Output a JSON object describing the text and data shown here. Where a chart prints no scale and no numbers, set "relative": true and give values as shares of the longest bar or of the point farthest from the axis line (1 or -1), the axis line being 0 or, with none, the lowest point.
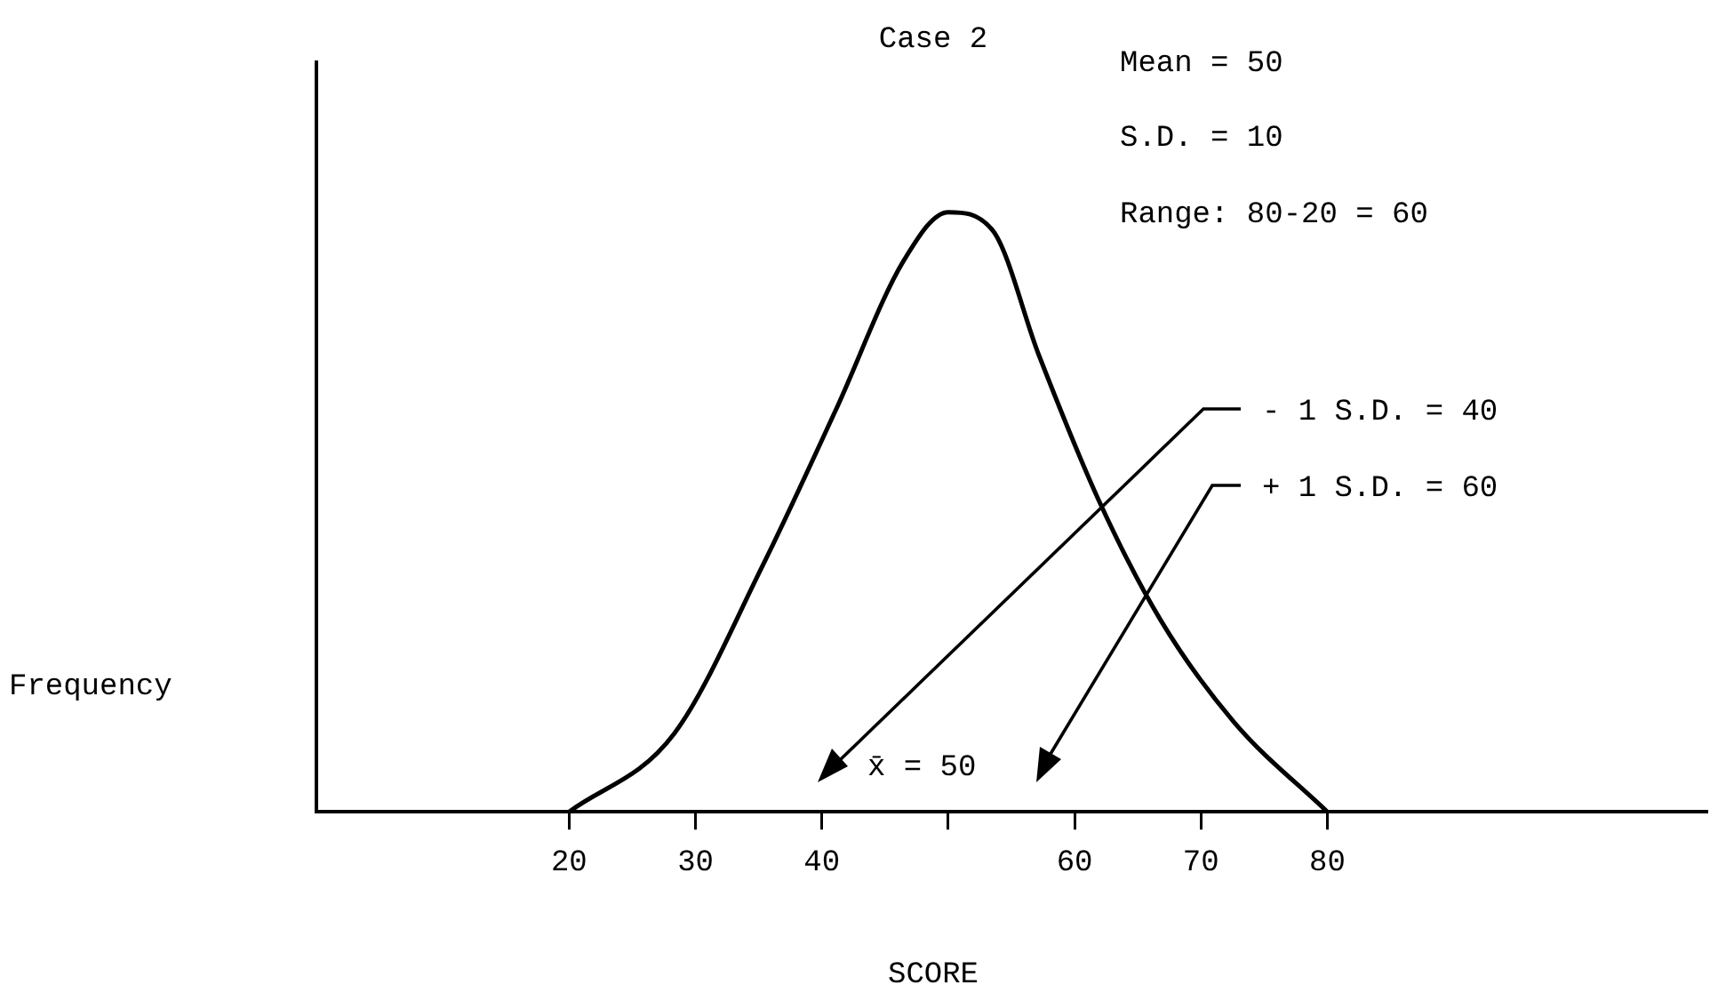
{
  "chart_data": {
    "type": "line",
    "title": "Case 2",
    "xlabel": "SCORE",
    "ylabel": "Frequency",
    "relative": true,
    "x": [
      20,
      28.3,
      35.3,
      41.1,
      46.5,
      50,
      53.5,
      57.2,
      61.9,
      66.8,
      72.6,
      80
    ],
    "series": [
      {
        "color": "#000000",
        "values": [
          0,
          0.13,
          0.41,
          0.67,
          0.92,
          1,
          0.97,
          0.76,
          0.52,
          0.32,
          0.15,
          0
        ]
      }
    ],
    "xlim": [
      0,
      110
    ],
    "xticks": [
      20,
      30,
      40,
      {
        "value": 50,
        "label": null
      },
      60,
      70,
      80
    ],
    "grid": false,
    "legend": false,
    "marker": "none",
    "line_style": "solid",
    "annotations": [
      "Mean = 50",
      "S.D. = 10",
      "Range: 80-20 = 60",
      "- 1 S.D. = 40",
      "+ 1 S.D. = 60",
      "x̄ = 50"
    ]
  }
}
